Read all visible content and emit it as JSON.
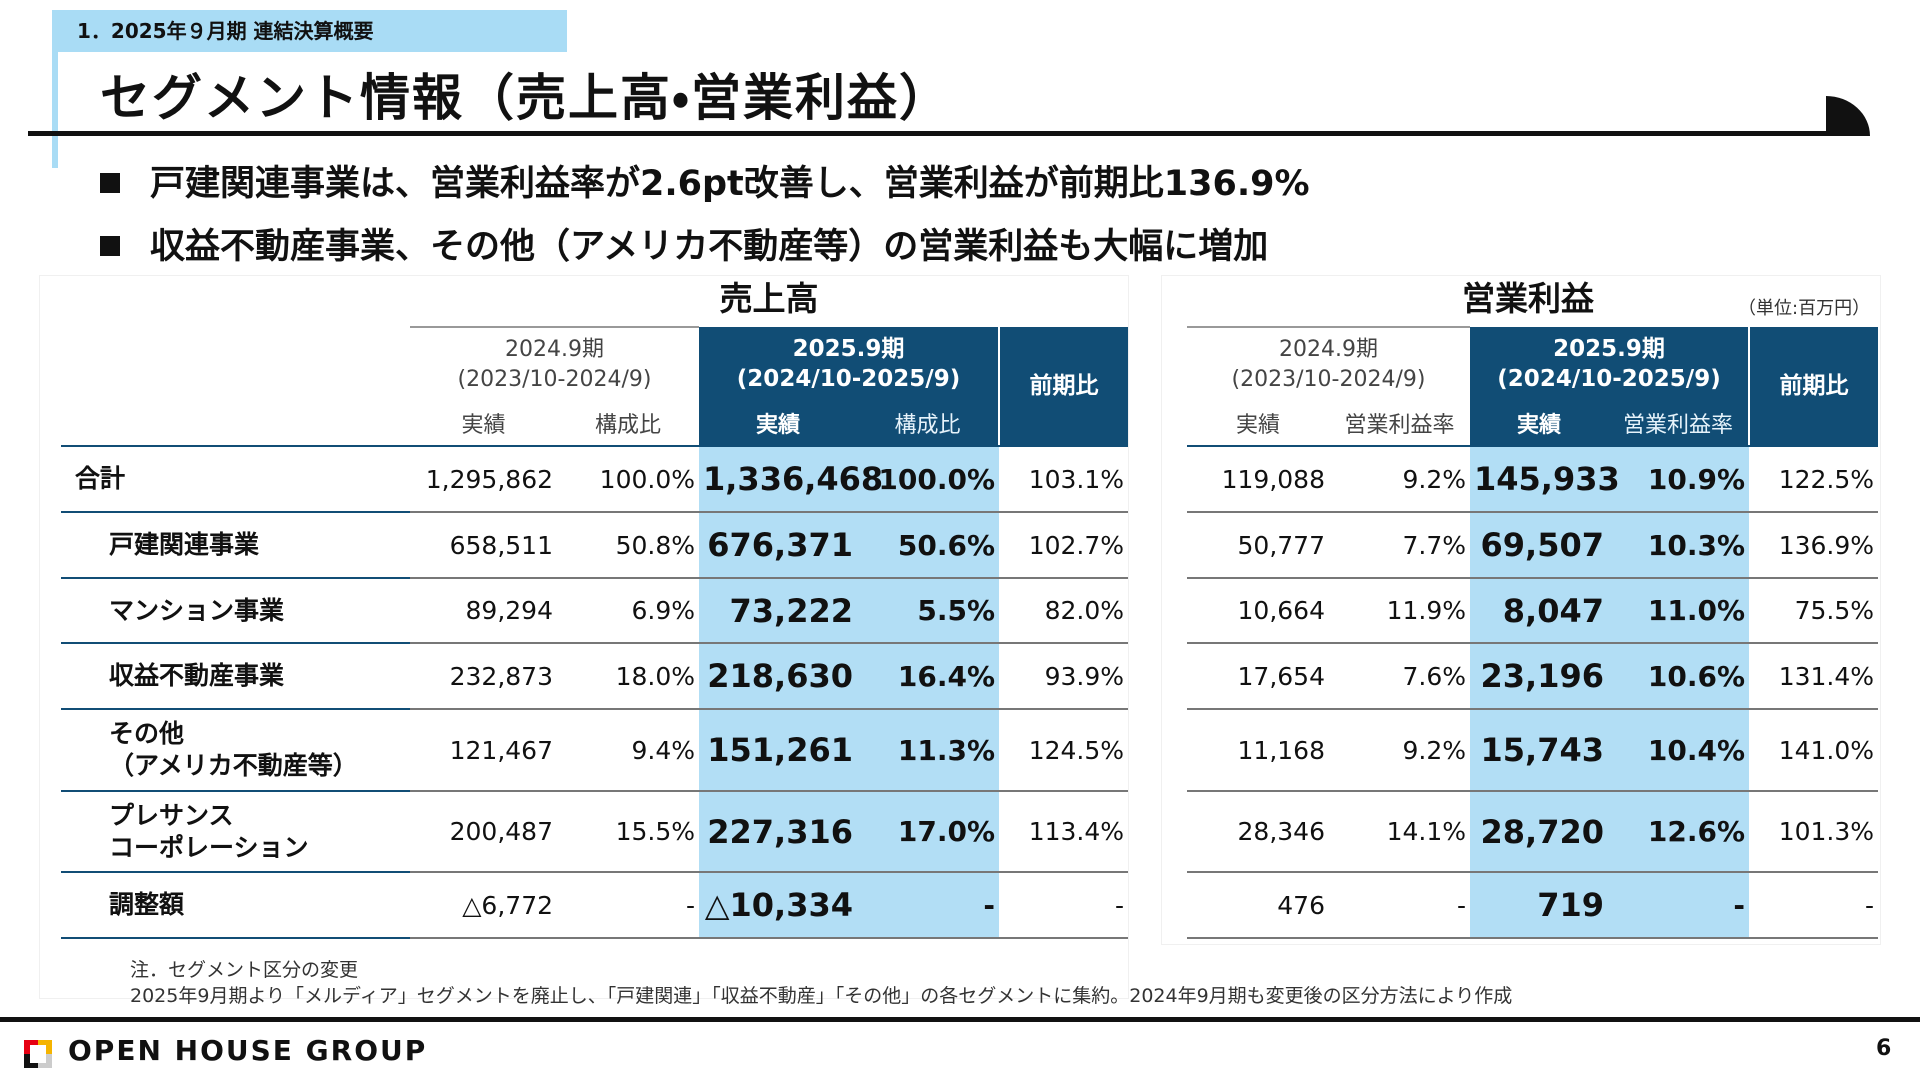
{
  "header": {
    "section": "1．2025年９月期 連結決算概要",
    "title": "セグメント情報（売上高・営業利益）"
  },
  "bullets": [
    "戸建関連事業は、営業利益率が2.6pt改善し、営業利益が前期比136.9%",
    "収益不動産事業、その他（アメリカ不動産等）の営業利益も大幅に増加"
  ],
  "unit": "（単位:百万円）",
  "row_labels": [
    "合計",
    "戸建関連事業",
    "マンション事業",
    "収益不動産事業",
    "その他\n（アメリカ不動産等）",
    "プレサンス\nコーポレーション",
    "調整額"
  ],
  "tables": [
    {
      "title": "売上高",
      "prev_period": "2024.9期",
      "prev_range": "(2023/10-2024/9)",
      "cur_period": "2025.9期",
      "cur_range": "(2024/10-2025/9)",
      "yoy": "前期比",
      "columns": [
        "実績",
        "構成比",
        "実績",
        "構成比"
      ],
      "rows": [
        [
          "1,295,862",
          "100.0%",
          "1,336,468",
          "100.0%",
          "103.1%"
        ],
        [
          "658,511",
          "50.8%",
          "676,371",
          "50.6%",
          "102.7%"
        ],
        [
          "89,294",
          "6.9%",
          "73,222",
          "5.5%",
          "82.0%"
        ],
        [
          "232,873",
          "18.0%",
          "218,630",
          "16.4%",
          "93.9%"
        ],
        [
          "121,467",
          "9.4%",
          "151,261",
          "11.3%",
          "124.5%"
        ],
        [
          "200,487",
          "15.5%",
          "227,316",
          "17.0%",
          "113.4%"
        ],
        [
          "△6,772",
          "-",
          "△10,334",
          "-",
          "-"
        ]
      ]
    },
    {
      "title": "営業利益",
      "prev_period": "2024.9期",
      "prev_range": "(2023/10-2024/9)",
      "cur_period": "2025.9期",
      "cur_range": "(2024/10-2025/9)",
      "yoy": "前期比",
      "columns": [
        "実績",
        "営業利益率",
        "実績",
        "営業利益率"
      ],
      "rows": [
        [
          "119,088",
          "9.2%",
          "145,933",
          "10.9%",
          "122.5%"
        ],
        [
          "50,777",
          "7.7%",
          "69,507",
          "10.3%",
          "136.9%"
        ],
        [
          "10,664",
          "11.9%",
          "8,047",
          "11.0%",
          "75.5%"
        ],
        [
          "17,654",
          "7.6%",
          "23,196",
          "10.6%",
          "131.4%"
        ],
        [
          "11,168",
          "9.2%",
          "15,743",
          "10.4%",
          "141.0%"
        ],
        [
          "28,346",
          "14.1%",
          "28,720",
          "12.6%",
          "101.3%"
        ],
        [
          "476",
          "-",
          "719",
          "-",
          "-"
        ]
      ]
    }
  ],
  "note": [
    "注．セグメント区分の変更",
    "2025年9月期より「メルディア」セグメントを廃止し、「戸建関連」「収益不動産」「その他」の各セグメントに集約。2024年9月期も変更後の区分方法により作成"
  ],
  "footer": {
    "logo": "OPEN HOUSE GROUP",
    "page": "6"
  }
}
